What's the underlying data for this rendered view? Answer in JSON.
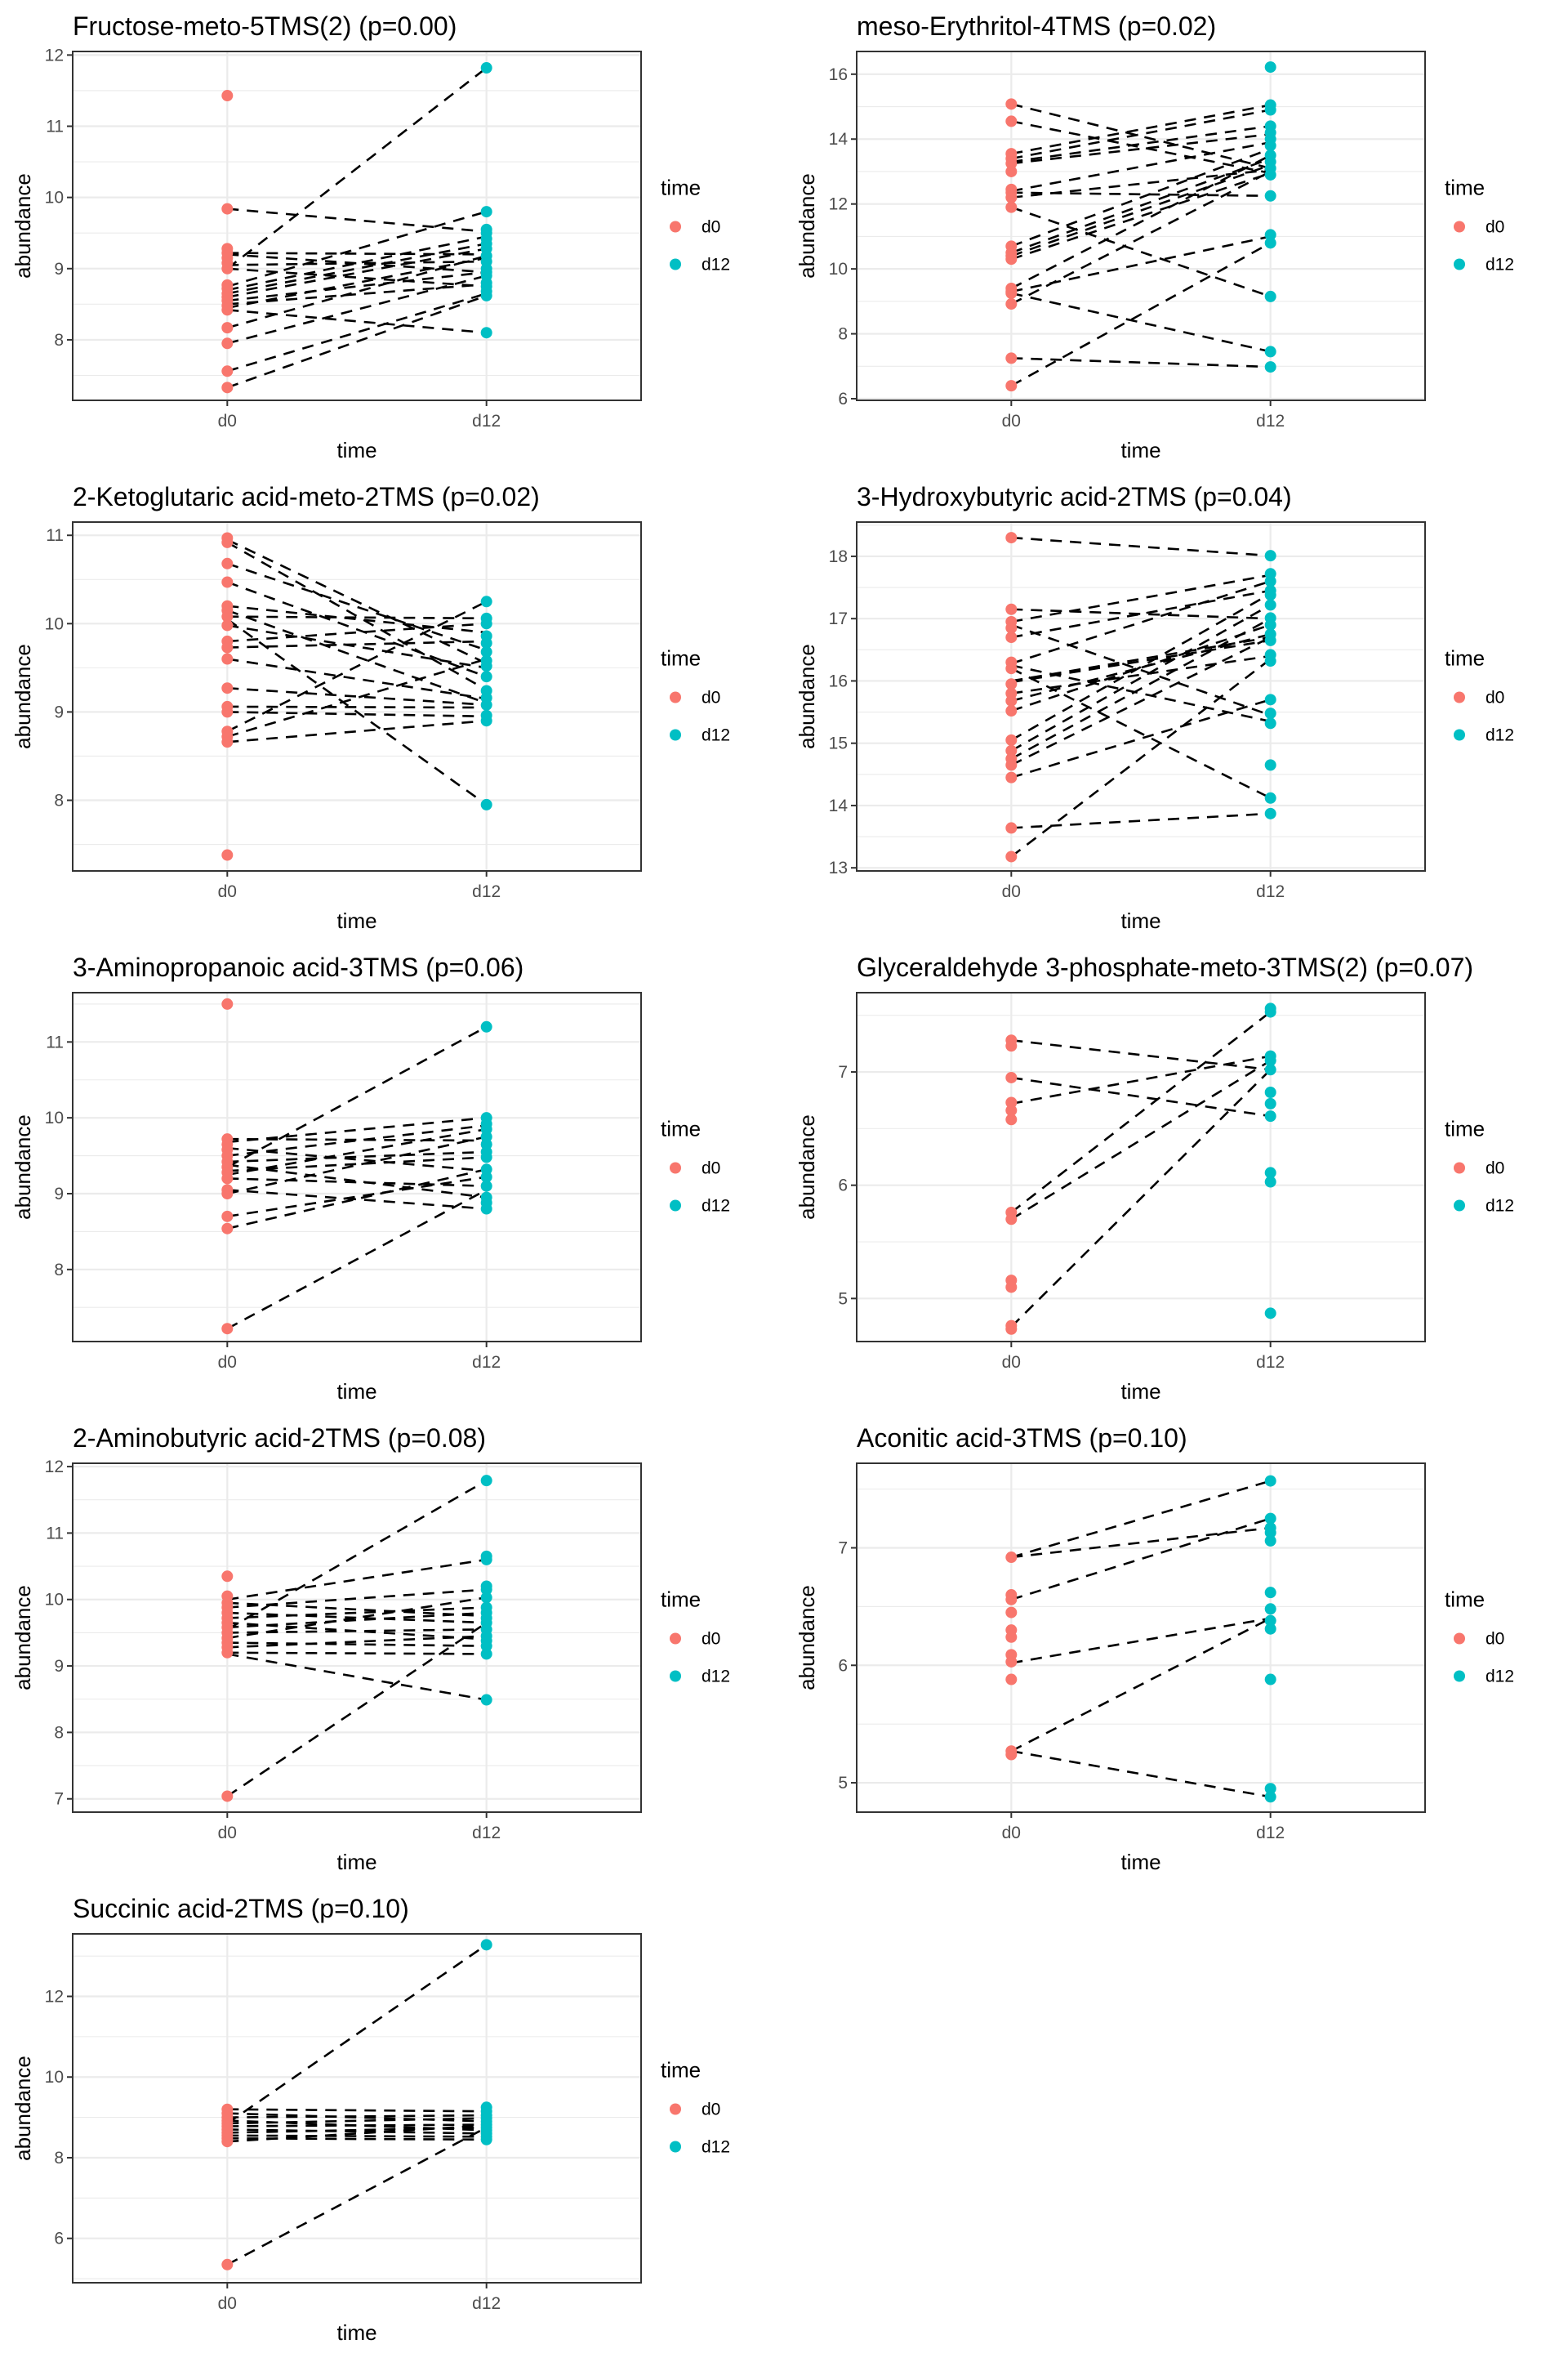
{
  "chart_data": [
    {
      "type": "line",
      "title": "Fructose-meto-5TMS(2) (p=0.00)",
      "xlabel": "time",
      "ylabel": "abundance",
      "categories": [
        "d0",
        "d12"
      ],
      "ylim": [
        7.15,
        12.05
      ],
      "yticks": [
        8,
        9,
        10,
        11,
        12
      ],
      "grid": true,
      "legend": {
        "title": "time",
        "placement": "right",
        "entries": [
          {
            "label": "d0",
            "color": "#F8766D"
          },
          {
            "label": "d12",
            "color": "#00BFC4"
          }
        ]
      },
      "d0": [
        11.43,
        9.84,
        9.28,
        9.22,
        9.15,
        9.08,
        9.0,
        8.77,
        8.72,
        8.65,
        8.6,
        8.55,
        8.48,
        8.42,
        8.17,
        7.95,
        7.56,
        7.33
      ],
      "d12": [
        11.82,
        9.8,
        9.55,
        9.5,
        9.42,
        9.35,
        9.28,
        9.18,
        9.1,
        9.0,
        8.95,
        8.9,
        8.8,
        8.75,
        8.68,
        8.62,
        8.1
      ],
      "pairs": [
        [
          9.0,
          11.82
        ],
        [
          9.84,
          9.52
        ],
        [
          9.22,
          9.2
        ],
        [
          9.2,
          8.95
        ],
        [
          9.05,
          9.1
        ],
        [
          9.0,
          8.75
        ],
        [
          8.75,
          9.8
        ],
        [
          8.7,
          9.45
        ],
        [
          8.65,
          9.35
        ],
        [
          8.6,
          9.28
        ],
        [
          8.55,
          8.95
        ],
        [
          8.5,
          8.78
        ],
        [
          8.45,
          9.15
        ],
        [
          8.42,
          8.1
        ],
        [
          8.17,
          9.18
        ],
        [
          7.95,
          8.9
        ],
        [
          7.56,
          8.65
        ],
        [
          7.33,
          8.62
        ]
      ]
    },
    {
      "type": "line",
      "title": "meso-Erythritol-4TMS (p=0.02)",
      "xlabel": "time",
      "ylabel": "abundance",
      "categories": [
        "d0",
        "d12"
      ],
      "ylim": [
        5.95,
        16.7
      ],
      "yticks": [
        6,
        8,
        10,
        12,
        14,
        16
      ],
      "grid": true,
      "legend": {
        "title": "time",
        "placement": "right",
        "entries": [
          {
            "label": "d0",
            "color": "#F8766D"
          },
          {
            "label": "d12",
            "color": "#00BFC4"
          }
        ]
      },
      "d0": [
        15.08,
        14.55,
        13.55,
        13.4,
        13.25,
        13.0,
        12.45,
        12.35,
        12.2,
        11.9,
        10.7,
        10.5,
        10.4,
        10.3,
        9.4,
        9.3,
        9.25,
        8.92,
        7.25,
        6.4
      ],
      "d12": [
        16.22,
        15.05,
        14.9,
        14.4,
        14.2,
        14.0,
        13.8,
        13.5,
        13.3,
        13.1,
        12.9,
        12.25,
        11.05,
        10.8,
        9.15,
        7.45,
        6.98
      ],
      "pairs": [
        [
          15.08,
          13.1
        ],
        [
          14.55,
          12.95
        ],
        [
          13.55,
          15.05
        ],
        [
          13.4,
          14.9
        ],
        [
          13.3,
          14.4
        ],
        [
          13.25,
          14.15
        ],
        [
          12.4,
          13.9
        ],
        [
          12.35,
          12.25
        ],
        [
          12.2,
          13.05
        ],
        [
          11.9,
          9.15
        ],
        [
          10.7,
          13.7
        ],
        [
          10.5,
          13.4
        ],
        [
          10.4,
          13.2
        ],
        [
          10.3,
          12.95
        ],
        [
          9.4,
          13.5
        ],
        [
          9.3,
          11.0
        ],
        [
          9.25,
          7.45
        ],
        [
          8.92,
          13.0
        ],
        [
          7.25,
          6.98
        ],
        [
          6.4,
          10.8
        ]
      ]
    },
    {
      "type": "line",
      "title": "2-Ketoglutaric acid-meto-2TMS (p=0.02)",
      "xlabel": "time",
      "ylabel": "abundance",
      "categories": [
        "d0",
        "d12"
      ],
      "ylim": [
        7.2,
        11.15
      ],
      "yticks": [
        8,
        9,
        10,
        11
      ],
      "grid": true,
      "legend": {
        "title": "time",
        "placement": "right",
        "entries": [
          {
            "label": "d0",
            "color": "#F8766D"
          },
          {
            "label": "d12",
            "color": "#00BFC4"
          }
        ]
      },
      "d0": [
        10.97,
        10.92,
        10.68,
        10.47,
        10.2,
        10.15,
        10.08,
        9.98,
        9.8,
        9.73,
        9.6,
        9.27,
        9.06,
        9.0,
        8.78,
        8.72,
        8.66,
        7.38
      ],
      "d12": [
        10.25,
        10.06,
        10.0,
        9.86,
        9.78,
        9.68,
        9.58,
        9.52,
        9.4,
        9.24,
        9.16,
        9.08,
        8.96,
        8.9,
        7.95
      ],
      "pairs": [
        [
          10.95,
          9.55
        ],
        [
          10.92,
          9.25
        ],
        [
          10.68,
          9.7
        ],
        [
          10.47,
          9.4
        ],
        [
          10.2,
          9.9
        ],
        [
          10.15,
          9.1
        ],
        [
          10.08,
          10.06
        ],
        [
          10.05,
          7.95
        ],
        [
          9.98,
          9.5
        ],
        [
          9.8,
          10.0
        ],
        [
          9.73,
          9.8
        ],
        [
          9.6,
          9.15
        ],
        [
          9.27,
          9.08
        ],
        [
          9.06,
          9.05
        ],
        [
          9.0,
          8.95
        ],
        [
          8.78,
          10.25
        ],
        [
          8.72,
          9.6
        ],
        [
          8.66,
          8.9
        ]
      ]
    },
    {
      "type": "line",
      "title": "3-Hydroxybutyric acid-2TMS (p=0.04)",
      "xlabel": "time",
      "ylabel": "abundance",
      "categories": [
        "d0",
        "d12"
      ],
      "ylim": [
        12.95,
        18.55
      ],
      "yticks": [
        13,
        14,
        15,
        16,
        17,
        18
      ],
      "grid": true,
      "legend": {
        "title": "time",
        "placement": "right",
        "entries": [
          {
            "label": "d0",
            "color": "#F8766D"
          },
          {
            "label": "d12",
            "color": "#00BFC4"
          }
        ]
      },
      "d0": [
        18.3,
        17.15,
        16.95,
        16.85,
        16.7,
        16.3,
        16.2,
        15.95,
        15.8,
        15.68,
        15.52,
        15.05,
        14.88,
        14.75,
        14.65,
        14.45,
        13.64,
        13.18
      ],
      "d12": [
        18.01,
        17.72,
        17.6,
        17.45,
        17.38,
        17.22,
        17.01,
        16.9,
        16.75,
        16.65,
        16.42,
        16.32,
        15.7,
        15.48,
        15.32,
        14.65,
        14.12,
        13.87
      ],
      "pairs": [
        [
          18.3,
          18.01
        ],
        [
          17.15,
          17.0
        ],
        [
          16.95,
          17.7
        ],
        [
          16.9,
          15.45
        ],
        [
          16.7,
          17.45
        ],
        [
          16.28,
          17.6
        ],
        [
          16.25,
          15.35
        ],
        [
          16.2,
          14.12
        ],
        [
          16.0,
          16.7
        ],
        [
          15.98,
          16.65
        ],
        [
          15.8,
          16.4
        ],
        [
          15.68,
          16.75
        ],
        [
          15.52,
          16.9
        ],
        [
          15.05,
          17.4
        ],
        [
          14.88,
          17.22
        ],
        [
          14.75,
          17.0
        ],
        [
          14.65,
          16.7
        ],
        [
          14.45,
          15.7
        ],
        [
          13.64,
          13.87
        ],
        [
          13.18,
          16.35
        ]
      ]
    },
    {
      "type": "line",
      "title": "3-Aminopropanoic acid-3TMS (p=0.06)",
      "xlabel": "time",
      "ylabel": "abundance",
      "categories": [
        "d0",
        "d12"
      ],
      "ylim": [
        7.05,
        11.65
      ],
      "yticks": [
        8,
        9,
        10,
        11
      ],
      "grid": true,
      "legend": {
        "title": "time",
        "placement": "right",
        "entries": [
          {
            "label": "d0",
            "color": "#F8766D"
          },
          {
            "label": "d12",
            "color": "#00BFC4"
          }
        ]
      },
      "d0": [
        11.5,
        9.72,
        9.65,
        9.58,
        9.5,
        9.42,
        9.35,
        9.28,
        9.2,
        9.05,
        9.0,
        8.7,
        8.54,
        7.22
      ],
      "d12": [
        11.2,
        10.0,
        9.92,
        9.85,
        9.75,
        9.65,
        9.55,
        9.48,
        9.32,
        9.22,
        9.1,
        8.95,
        8.88,
        8.8
      ],
      "pairs": [
        [
          9.35,
          11.2
        ],
        [
          9.72,
          9.7
        ],
        [
          9.68,
          10.0
        ],
        [
          9.6,
          9.3
        ],
        [
          9.5,
          9.9
        ],
        [
          9.42,
          9.55
        ],
        [
          9.38,
          8.95
        ],
        [
          9.3,
          9.48
        ],
        [
          9.25,
          9.85
        ],
        [
          9.2,
          9.1
        ],
        [
          9.05,
          8.8
        ],
        [
          9.0,
          9.75
        ],
        [
          8.7,
          9.22
        ],
        [
          8.54,
          9.32
        ],
        [
          7.22,
          9.05
        ]
      ]
    },
    {
      "type": "line",
      "title": "Glyceraldehyde 3-phosphate-meto-3TMS(2) (p=0.07)",
      "xlabel": "time",
      "ylabel": "abundance",
      "categories": [
        "d0",
        "d12"
      ],
      "ylim": [
        4.62,
        7.7
      ],
      "yticks": [
        5,
        6,
        7
      ],
      "grid": true,
      "legend": {
        "title": "time",
        "placement": "right",
        "entries": [
          {
            "label": "d0",
            "color": "#F8766D"
          },
          {
            "label": "d12",
            "color": "#00BFC4"
          }
        ]
      },
      "d0": [
        7.28,
        7.23,
        6.95,
        6.73,
        6.66,
        6.58,
        5.76,
        5.7,
        5.16,
        5.1,
        4.76,
        4.73
      ],
      "d12": [
        7.56,
        7.53,
        7.14,
        7.1,
        7.02,
        6.82,
        6.72,
        6.61,
        6.11,
        6.03,
        4.87
      ],
      "pairs": [
        [
          7.28,
          7.02
        ],
        [
          6.95,
          6.61
        ],
        [
          6.72,
          7.14
        ],
        [
          5.76,
          7.53
        ],
        [
          5.7,
          7.1
        ],
        [
          4.75,
          7.02
        ]
      ]
    },
    {
      "type": "line",
      "title": "2-Aminobutyric acid-2TMS (p=0.08)",
      "xlabel": "time",
      "ylabel": "abundance",
      "categories": [
        "d0",
        "d12"
      ],
      "ylim": [
        6.8,
        12.05
      ],
      "yticks": [
        7,
        8,
        9,
        10,
        11,
        12
      ],
      "grid": true,
      "legend": {
        "title": "time",
        "placement": "right",
        "entries": [
          {
            "label": "d0",
            "color": "#F8766D"
          },
          {
            "label": "d12",
            "color": "#00BFC4"
          }
        ]
      },
      "d0": [
        10.35,
        10.05,
        9.95,
        9.88,
        9.8,
        9.72,
        9.65,
        9.58,
        9.5,
        9.42,
        9.35,
        9.28,
        9.2,
        7.04
      ],
      "d12": [
        11.79,
        10.65,
        10.6,
        10.2,
        10.15,
        10.03,
        9.88,
        9.8,
        9.72,
        9.65,
        9.55,
        9.45,
        9.38,
        9.3,
        9.18,
        8.49
      ],
      "pairs": [
        [
          9.55,
          11.79
        ],
        [
          10.0,
          10.6
        ],
        [
          9.95,
          9.75
        ],
        [
          9.88,
          10.15
        ],
        [
          9.8,
          9.65
        ],
        [
          9.72,
          9.88
        ],
        [
          9.65,
          9.4
        ],
        [
          9.58,
          9.8
        ],
        [
          9.5,
          9.55
        ],
        [
          9.42,
          10.03
        ],
        [
          9.35,
          9.3
        ],
        [
          9.28,
          9.45
        ],
        [
          9.2,
          9.18
        ],
        [
          9.18,
          8.49
        ],
        [
          7.04,
          9.65
        ]
      ]
    },
    {
      "type": "line",
      "title": "Aconitic acid-3TMS (p=0.10)",
      "xlabel": "time",
      "ylabel": "abundance",
      "categories": [
        "d0",
        "d12"
      ],
      "ylim": [
        4.75,
        7.72
      ],
      "yticks": [
        5,
        6,
        7
      ],
      "grid": true,
      "legend": {
        "title": "time",
        "placement": "right",
        "entries": [
          {
            "label": "d0",
            "color": "#F8766D"
          },
          {
            "label": "d12",
            "color": "#00BFC4"
          }
        ]
      },
      "d0": [
        6.92,
        6.6,
        6.56,
        6.45,
        6.3,
        6.24,
        6.09,
        6.03,
        5.88,
        5.27,
        5.24
      ],
      "d12": [
        7.57,
        7.25,
        7.17,
        7.13,
        7.06,
        6.62,
        6.48,
        6.38,
        6.31,
        5.88,
        4.95,
        4.88
      ],
      "pairs": [
        [
          6.92,
          7.57
        ],
        [
          6.92,
          7.17
        ],
        [
          6.56,
          7.25
        ],
        [
          6.02,
          6.4
        ],
        [
          5.27,
          6.4
        ],
        [
          5.27,
          4.88
        ]
      ]
    },
    {
      "type": "line",
      "title": "Succinic acid-2TMS (p=0.10)",
      "xlabel": "time",
      "ylabel": "abundance",
      "categories": [
        "d0",
        "d12"
      ],
      "ylim": [
        4.9,
        13.55
      ],
      "yticks": [
        6,
        8,
        10,
        12
      ],
      "grid": true,
      "legend": {
        "title": "time",
        "placement": "right",
        "entries": [
          {
            "label": "d0",
            "color": "#F8766D"
          },
          {
            "label": "d12",
            "color": "#00BFC4"
          }
        ]
      },
      "d0": [
        9.2,
        9.1,
        9.0,
        8.92,
        8.85,
        8.78,
        8.7,
        8.62,
        8.55,
        8.48,
        8.4,
        5.35
      ],
      "d12": [
        13.28,
        9.25,
        9.15,
        9.05,
        8.98,
        8.9,
        8.82,
        8.75,
        8.68,
        8.6,
        8.52,
        8.45
      ],
      "pairs": [
        [
          8.85,
          13.28
        ],
        [
          9.2,
          9.15
        ],
        [
          9.1,
          8.9
        ],
        [
          9.0,
          9.05
        ],
        [
          8.92,
          8.68
        ],
        [
          8.85,
          8.98
        ],
        [
          8.78,
          8.82
        ],
        [
          8.7,
          8.6
        ],
        [
          8.62,
          8.75
        ],
        [
          8.55,
          8.52
        ],
        [
          8.48,
          8.45
        ],
        [
          8.4,
          8.8
        ],
        [
          5.35,
          8.75
        ]
      ]
    }
  ]
}
